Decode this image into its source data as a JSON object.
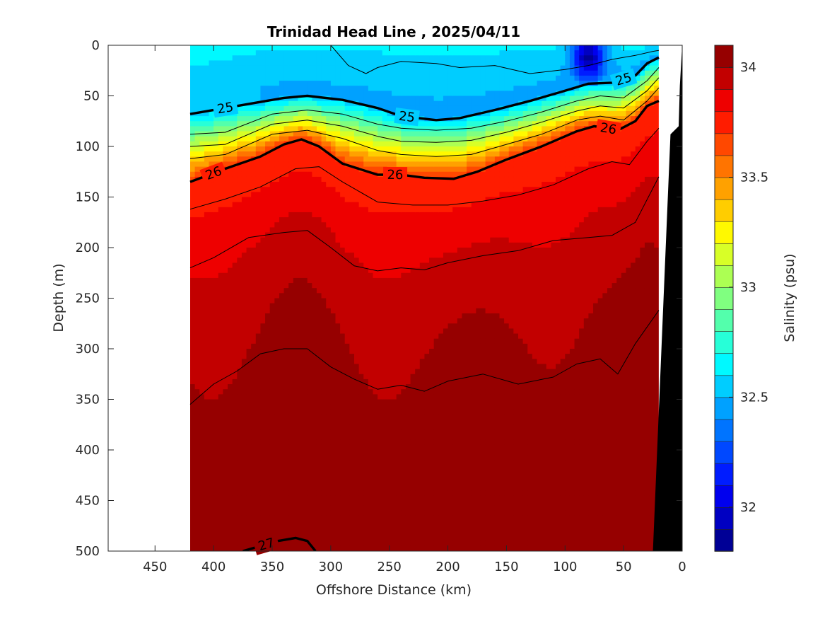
{
  "chart_data": {
    "type": "contour_section",
    "title": "Trinidad Head Line , 2025/04/11",
    "xlabel": "Offshore Distance (km)",
    "ylabel": "Depth (m)",
    "xlim": [
      490,
      0
    ],
    "ylim": [
      0,
      500
    ],
    "x_reversed": true,
    "y_reversed": true,
    "x_ticks": [
      450,
      400,
      350,
      300,
      250,
      200,
      150,
      100,
      50,
      0
    ],
    "y_ticks": [
      0,
      50,
      100,
      150,
      200,
      250,
      300,
      350,
      400,
      450,
      500
    ],
    "data_x_range": [
      420,
      20
    ],
    "colorbar": {
      "label": "Salinity (psu)",
      "range": [
        31.8,
        34.1
      ],
      "step": 0.1,
      "ticks": [
        32,
        32.5,
        33,
        33.5,
        34
      ],
      "colormap": "jet"
    },
    "salinity_profile": {
      "description_depths_m": [
        0,
        40,
        60,
        80,
        100,
        120,
        150,
        200,
        300,
        400,
        500
      ],
      "salinity_psu": [
        32.6,
        32.5,
        32.7,
        33.1,
        33.5,
        33.7,
        33.8,
        33.9,
        34.0,
        34.05,
        34.08
      ]
    },
    "low_salinity_core": {
      "x_km": 80,
      "depth_m": 10,
      "salinity_psu": 31.9
    },
    "density_contours": [
      {
        "sigma": 25,
        "bold": true,
        "label": "25",
        "x": [
          420,
          380,
          340,
          320,
          290,
          260,
          240,
          210,
          190,
          160,
          130,
          100,
          80,
          60,
          40,
          30,
          20
        ],
        "depth": [
          68,
          60,
          52,
          50,
          54,
          62,
          70,
          74,
          72,
          64,
          55,
          45,
          38,
          37,
          30,
          18,
          12
        ]
      },
      {
        "sigma": 26,
        "bold": true,
        "label": "26",
        "x": [
          420,
          390,
          360,
          340,
          325,
          310,
          290,
          260,
          240,
          220,
          195,
          175,
          150,
          120,
          90,
          75,
          55,
          40,
          30,
          20
        ],
        "depth": [
          135,
          122,
          110,
          98,
          93,
          100,
          117,
          128,
          128,
          131,
          132,
          125,
          113,
          100,
          85,
          80,
          84,
          75,
          60,
          55
        ]
      },
      {
        "sigma": 27,
        "bold": true,
        "label": "27",
        "x": [
          375,
          345,
          330,
          320,
          313
        ],
        "depth": [
          500,
          490,
          487,
          490,
          500
        ]
      },
      {
        "sigma": 24.8,
        "bold": false,
        "x": [
          300,
          285,
          270,
          260,
          240,
          210,
          190,
          160,
          130,
          100,
          80,
          60,
          40,
          25,
          20
        ],
        "depth": [
          0,
          20,
          28,
          22,
          16,
          18,
          22,
          20,
          28,
          24,
          20,
          14,
          10,
          6,
          5
        ]
      },
      {
        "sigma": 25.2,
        "bold": false,
        "x": [
          420,
          390,
          350,
          320,
          290,
          260,
          240,
          210,
          180,
          150,
          120,
          90,
          70,
          50,
          30,
          20
        ],
        "depth": [
          88,
          86,
          68,
          64,
          68,
          78,
          82,
          84,
          82,
          75,
          66,
          55,
          50,
          52,
          35,
          22
        ]
      },
      {
        "sigma": 25.4,
        "bold": false,
        "x": [
          420,
          390,
          350,
          320,
          290,
          260,
          240,
          210,
          180,
          150,
          120,
          90,
          70,
          50,
          30,
          20
        ],
        "depth": [
          100,
          98,
          78,
          74,
          80,
          90,
          95,
          96,
          94,
          86,
          76,
          65,
          60,
          62,
          45,
          32
        ]
      },
      {
        "sigma": 25.6,
        "bold": false,
        "x": [
          420,
          390,
          350,
          320,
          290,
          260,
          240,
          210,
          180,
          150,
          120,
          90,
          70,
          50,
          30,
          20
        ],
        "depth": [
          112,
          108,
          88,
          84,
          92,
          104,
          108,
          110,
          108,
          98,
          88,
          74,
          70,
          74,
          55,
          42
        ]
      },
      {
        "sigma": 26.2,
        "bold": false,
        "x": [
          420,
          390,
          360,
          330,
          310,
          290,
          260,
          230,
          200,
          170,
          140,
          110,
          80,
          60,
          45,
          30,
          20
        ],
        "depth": [
          162,
          152,
          140,
          122,
          120,
          135,
          155,
          158,
          158,
          154,
          148,
          138,
          122,
          115,
          118,
          95,
          82
        ]
      },
      {
        "sigma": 26.4,
        "bold": false,
        "x": [
          420,
          400,
          370,
          340,
          320,
          300,
          280,
          260,
          240,
          220,
          200,
          170,
          140,
          110,
          80,
          60,
          40,
          20
        ],
        "depth": [
          220,
          210,
          190,
          185,
          183,
          200,
          218,
          223,
          220,
          222,
          215,
          208,
          203,
          193,
          190,
          188,
          175,
          130
        ]
      },
      {
        "sigma": 26.6,
        "bold": false,
        "x": [
          420,
          400,
          380,
          360,
          340,
          320,
          300,
          280,
          260,
          240,
          220,
          200,
          170,
          140,
          110,
          90,
          70,
          55,
          40,
          20
        ],
        "depth": [
          355,
          335,
          322,
          305,
          300,
          300,
          318,
          330,
          340,
          336,
          342,
          332,
          325,
          335,
          328,
          315,
          310,
          325,
          295,
          262
        ]
      }
    ]
  }
}
